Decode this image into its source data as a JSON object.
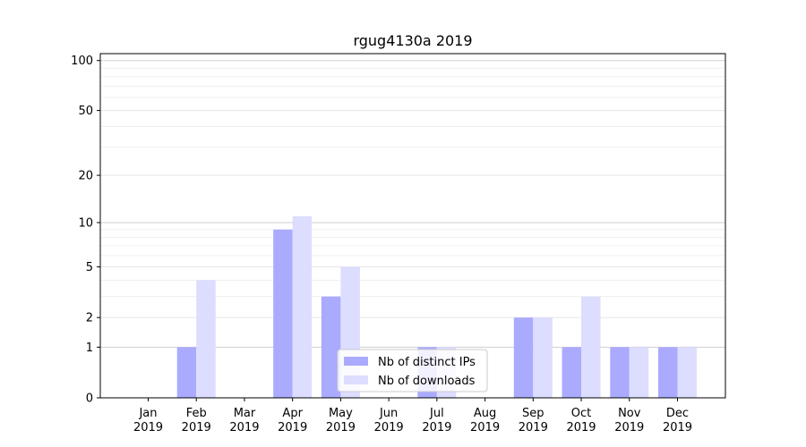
{
  "chart_data": {
    "type": "bar",
    "title": "rgug4130a 2019",
    "xlabel": "",
    "ylabel": "",
    "y_scale": "symlog",
    "y_ticks": [
      0,
      1,
      2,
      5,
      10,
      20,
      50,
      100
    ],
    "y_tick_labels": [
      "0",
      "1",
      "2",
      "5",
      "10",
      "20",
      "50",
      "100"
    ],
    "ylim": [
      0,
      110
    ],
    "grid": true,
    "legend_position": "bottom-center",
    "categories": [
      {
        "month": "Jan",
        "year": "2019"
      },
      {
        "month": "Feb",
        "year": "2019"
      },
      {
        "month": "Mar",
        "year": "2019"
      },
      {
        "month": "Apr",
        "year": "2019"
      },
      {
        "month": "May",
        "year": "2019"
      },
      {
        "month": "Jun",
        "year": "2019"
      },
      {
        "month": "Jul",
        "year": "2019"
      },
      {
        "month": "Aug",
        "year": "2019"
      },
      {
        "month": "Sep",
        "year": "2019"
      },
      {
        "month": "Oct",
        "year": "2019"
      },
      {
        "month": "Nov",
        "year": "2019"
      },
      {
        "month": "Dec",
        "year": "2019"
      }
    ],
    "series": [
      {
        "name": "Nb of distinct IPs",
        "color": "#aaaaff",
        "values": [
          0,
          1,
          0,
          9,
          3,
          0,
          1,
          0,
          2,
          1,
          1,
          1
        ]
      },
      {
        "name": "Nb of downloads",
        "color": "#ddddff",
        "values": [
          0,
          4,
          0,
          11,
          5,
          0,
          1,
          0,
          2,
          3,
          1,
          1
        ]
      }
    ]
  }
}
